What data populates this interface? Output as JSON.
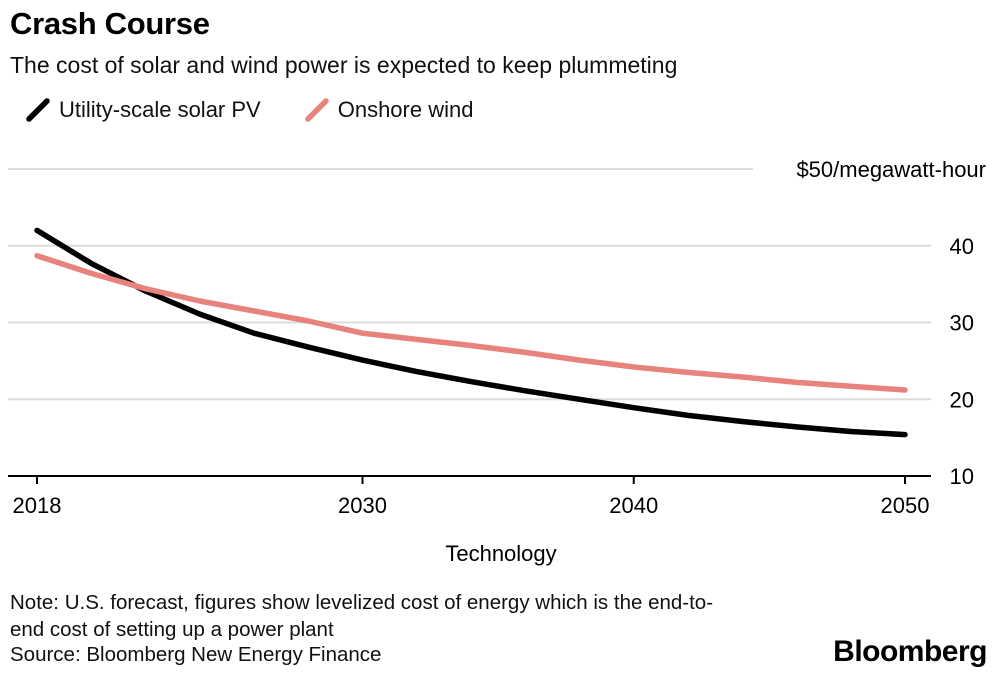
{
  "header": {
    "title": "Crash Course",
    "subtitle": "The cost of solar and wind power is expected to keep plummeting"
  },
  "legend": [
    {
      "label": "Utility-scale solar PV",
      "color": "#000000"
    },
    {
      "label": "Onshore wind",
      "color": "#e8827c"
    }
  ],
  "chart_data": {
    "type": "line",
    "title": "Crash Course",
    "subtitle": "The cost of solar and wind power is expected to keep plummeting",
    "xlabel": "Technology",
    "ylabel": "$50/megawatt-hour",
    "xlim": [
      2018,
      2050
    ],
    "ylim": [
      10,
      50
    ],
    "grid": true,
    "legend_position": "top-left",
    "x": [
      2018,
      2020,
      2022,
      2024,
      2026,
      2028,
      2030,
      2032,
      2034,
      2036,
      2038,
      2040,
      2042,
      2044,
      2046,
      2048,
      2050
    ],
    "series": [
      {
        "name": "Utility-scale solar PV",
        "color": "#000000",
        "values": [
          42.0,
          37.7,
          34.1,
          31.1,
          28.6,
          26.8,
          25.1,
          23.6,
          22.3,
          21.1,
          20.0,
          18.9,
          17.9,
          17.1,
          16.4,
          15.8,
          15.4
        ]
      },
      {
        "name": "Onshore wind",
        "color": "#e8827c",
        "values": [
          38.7,
          36.4,
          34.4,
          32.8,
          31.5,
          30.2,
          28.6,
          27.8,
          27.0,
          26.1,
          25.1,
          24.2,
          23.5,
          22.9,
          22.2,
          21.7,
          21.2
        ]
      }
    ],
    "xticks": [
      2018,
      2030,
      2040,
      2050
    ],
    "xtick_labels": [
      "2018",
      "2030",
      "2040",
      "2050"
    ],
    "yticks": [
      10,
      20,
      30,
      40,
      50
    ],
    "ytick_labels": [
      "10",
      "20",
      "30",
      "40",
      "$50/megawatt-hour"
    ]
  },
  "style": {
    "gridline_color": "#dcdcdc",
    "axis_color": "#000000",
    "text_color": "#000000"
  },
  "footer": {
    "note": "Note: U.S. forecast, figures show levelized cost of energy which is the end-to-\nend cost of setting up a power plant",
    "source": "Source: Bloomberg New Energy Finance",
    "brand": "Bloomberg"
  }
}
